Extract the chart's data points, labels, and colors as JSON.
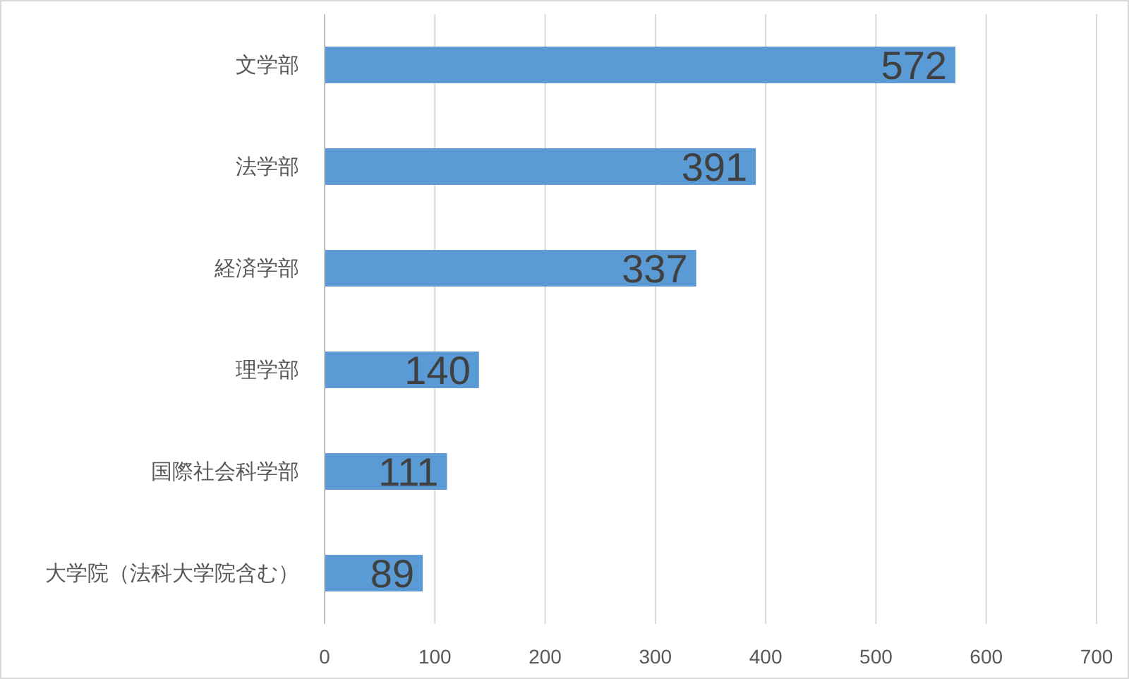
{
  "chart_data": {
    "type": "bar",
    "orientation": "horizontal",
    "categories": [
      "文学部",
      "法学部",
      "経済学部",
      "理学部",
      "国際社会科学部",
      "大学院（法科大学院含む）"
    ],
    "values": [
      572,
      391,
      337,
      140,
      111,
      89
    ],
    "color": "#5b9bd5",
    "xlim": [
      0,
      700
    ],
    "xticks": [
      0,
      100,
      200,
      300,
      400,
      500,
      600,
      700
    ],
    "grid": "x",
    "data_labels": true
  }
}
